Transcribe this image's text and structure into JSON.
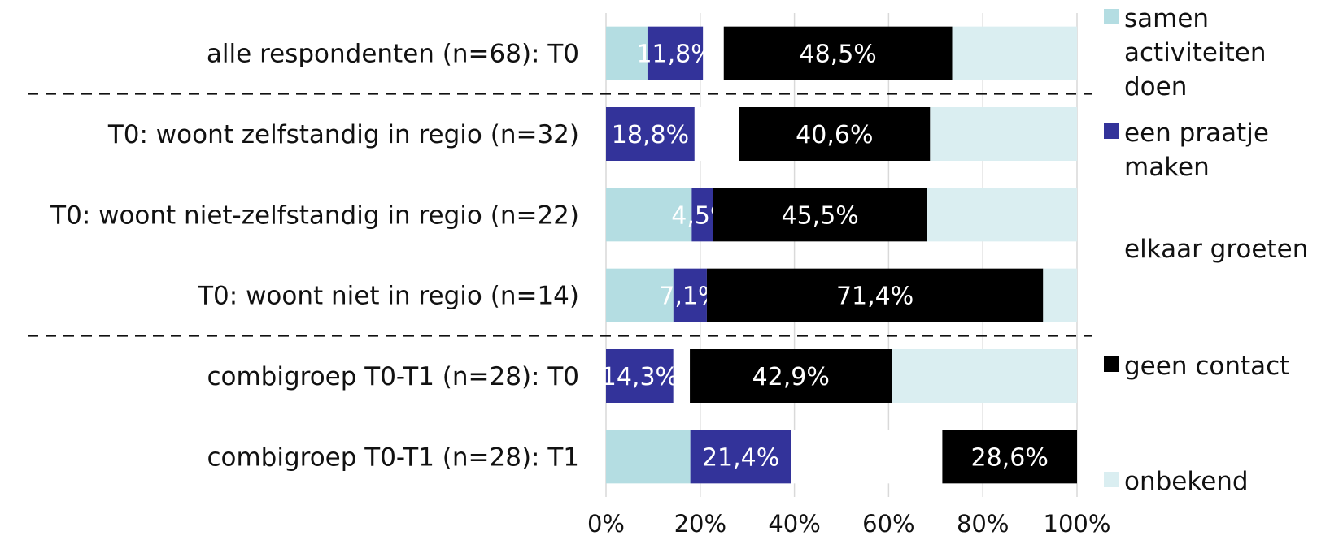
{
  "chart_data": {
    "type": "bar",
    "stacked": true,
    "orientation": "horizontal",
    "title": "",
    "xlabel": "",
    "ylabel": "",
    "xlim": [
      0,
      100
    ],
    "x_ticks": [
      "0%",
      "20%",
      "40%",
      "60%",
      "80%",
      "100%"
    ],
    "grid": "vertical",
    "legend_position": "right",
    "categories": [
      "alle respondenten (n=68): T0",
      "T0: woont zelfstandig in regio (n=32)",
      "T0: woont niet-zelfstandig in regio (n=22)",
      "T0: woont niet in regio (n=14)",
      "combigroep T0-T1 (n=28): T0",
      "combigroep T0-T1 (n=28): T1"
    ],
    "group_separators_after": [
      0,
      3
    ],
    "series": [
      {
        "name": "samen activiteiten doen",
        "color": "#b4dde2",
        "values": [
          8.8,
          0,
          18.2,
          14.3,
          0,
          17.9
        ],
        "labels": [
          "",
          "",
          "",
          "",
          "",
          ""
        ]
      },
      {
        "name": "een praatje maken",
        "color": "#33339a",
        "values": [
          11.8,
          18.8,
          4.5,
          7.1,
          14.3,
          21.4
        ],
        "labels": [
          "11,8%",
          "18,8%",
          "4,5%",
          "7,1%",
          "14,3%",
          "21,4%"
        ]
      },
      {
        "name": "elkaar groeten",
        "color": "#ffffff",
        "values": [
          4.4,
          9.4,
          0,
          0,
          3.5,
          32.1
        ],
        "labels": [
          "",
          "",
          "",
          "",
          "",
          ""
        ]
      },
      {
        "name": "geen contact",
        "color": "#000000",
        "values": [
          48.5,
          40.6,
          45.5,
          71.4,
          42.9,
          28.6
        ],
        "labels": [
          "48,5%",
          "40,6%",
          "45,5%",
          "71,4%",
          "42,9%",
          "28,6%"
        ]
      },
      {
        "name": "onbekend",
        "color": "#daeef1",
        "values": [
          26.5,
          31.2,
          31.8,
          7.2,
          39.3,
          0
        ],
        "labels": [
          "",
          "",
          "",
          "",
          "",
          ""
        ]
      }
    ]
  }
}
